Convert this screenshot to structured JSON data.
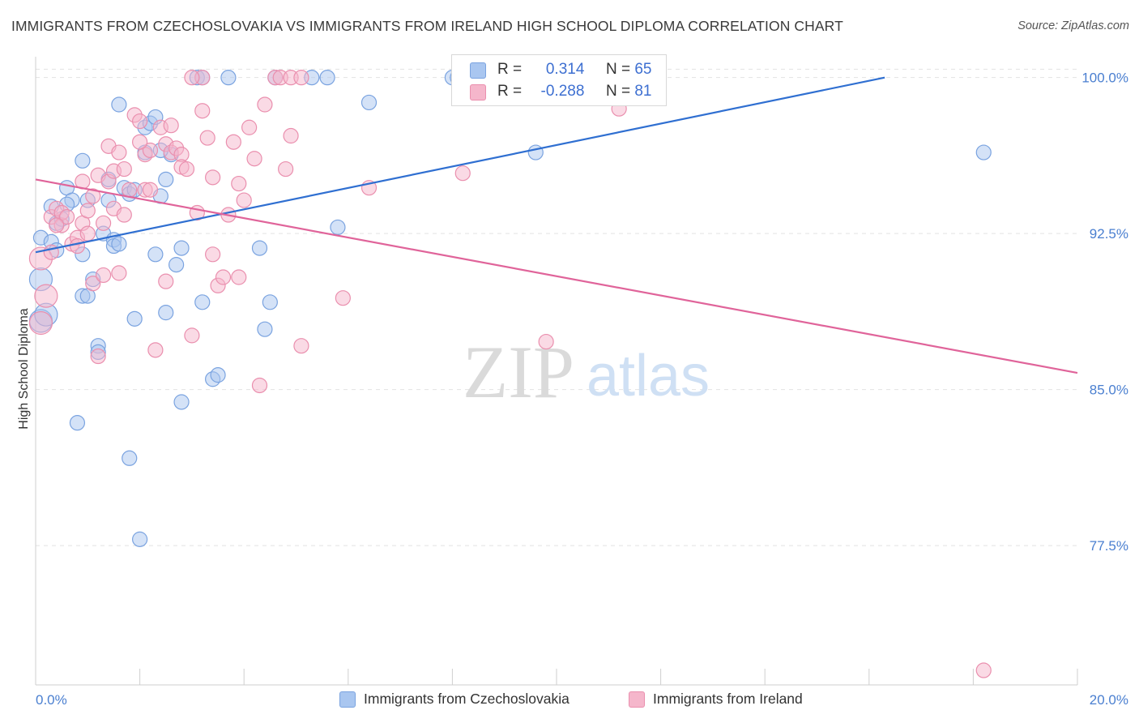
{
  "title": "IMMIGRANTS FROM CZECHOSLOVAKIA VS IMMIGRANTS FROM IRELAND HIGH SCHOOL DIPLOMA CORRELATION CHART",
  "source": "Source: ZipAtlas.com",
  "watermark": {
    "zip": "ZIP",
    "atlas": "atlas"
  },
  "legend": {
    "rows": [
      {
        "r_label": "R =",
        "r_value": "0.314",
        "n_label": "N =",
        "n_value": "65"
      },
      {
        "r_label": "R =",
        "r_value": "-0.288",
        "n_label": "N =",
        "n_value": "81"
      }
    ]
  },
  "bottom_legend": [
    "Immigrants from Czechoslovakia",
    "Immigrants from Ireland"
  ],
  "colors": {
    "blue_fill": "#a9c6f0",
    "blue_stroke": "#7aa3e0",
    "blue_line": "#2f6fd1",
    "pink_fill": "#f5b6cb",
    "pink_stroke": "#ea8fae",
    "pink_line": "#e0649a",
    "tick_text": "#4a7fd0",
    "grid": "#e2e2e2"
  },
  "chart_data": {
    "type": "scatter",
    "title": "IMMIGRANTS FROM CZECHOSLOVAKIA VS IMMIGRANTS FROM IRELAND HIGH SCHOOL DIPLOMA CORRELATION CHART",
    "xlabel": "",
    "ylabel": "High School Diploma",
    "xlim": [
      0,
      20
    ],
    "ylim": [
      70.8,
      101
    ],
    "x_tick_labels": [
      "0.0%",
      "20.0%"
    ],
    "y_ticks": [
      77.5,
      85.0,
      92.5,
      100.0
    ],
    "y_tick_labels": [
      "77.5%",
      "85.0%",
      "92.5%",
      "100.0%"
    ],
    "grid": true,
    "legend_position": "top-center",
    "series": [
      {
        "name": "Immigrants from Czechoslovakia",
        "R": 0.314,
        "N": 65,
        "trend": [
          [
            0.0,
            91.6
          ],
          [
            16.3,
            100.0
          ]
        ],
        "points": [
          [
            0.1,
            92.3
          ],
          [
            0.1,
            90.3
          ],
          [
            0.1,
            88.3
          ],
          [
            0.3,
            92.1
          ],
          [
            0.3,
            93.8
          ],
          [
            0.4,
            93.0
          ],
          [
            0.4,
            91.7
          ],
          [
            0.5,
            93.2
          ],
          [
            0.6,
            94.7
          ],
          [
            0.7,
            94.1
          ],
          [
            0.8,
            83.4
          ],
          [
            0.9,
            91.5
          ],
          [
            0.9,
            96.0
          ],
          [
            0.9,
            89.5
          ],
          [
            1.0,
            94.1
          ],
          [
            1.0,
            89.5
          ],
          [
            1.1,
            90.3
          ],
          [
            1.2,
            87.1
          ],
          [
            1.2,
            86.8
          ],
          [
            1.3,
            92.5
          ],
          [
            1.4,
            95.1
          ],
          [
            1.4,
            94.1
          ],
          [
            1.5,
            92.2
          ],
          [
            1.5,
            91.9
          ],
          [
            1.6,
            98.7
          ],
          [
            1.7,
            94.7
          ],
          [
            1.8,
            81.7
          ],
          [
            1.8,
            94.4
          ],
          [
            1.9,
            94.6
          ],
          [
            1.9,
            88.4
          ],
          [
            2.0,
            77.8
          ],
          [
            2.1,
            97.6
          ],
          [
            2.1,
            96.4
          ],
          [
            2.2,
            97.8
          ],
          [
            2.3,
            98.1
          ],
          [
            2.3,
            91.5
          ],
          [
            2.4,
            94.3
          ],
          [
            2.5,
            88.7
          ],
          [
            2.5,
            95.1
          ],
          [
            2.6,
            96.3
          ],
          [
            2.7,
            91.0
          ],
          [
            2.8,
            84.4
          ],
          [
            2.8,
            91.8
          ],
          [
            3.1,
            100.0
          ],
          [
            3.2,
            100.0
          ],
          [
            3.2,
            89.2
          ],
          [
            3.4,
            85.5
          ],
          [
            3.5,
            85.7
          ],
          [
            3.7,
            100.0
          ],
          [
            4.3,
            91.8
          ],
          [
            4.4,
            87.9
          ],
          [
            4.5,
            89.2
          ],
          [
            4.6,
            100.0
          ],
          [
            5.3,
            100.0
          ],
          [
            5.6,
            100.0
          ],
          [
            5.8,
            92.8
          ],
          [
            6.4,
            98.8
          ],
          [
            8.0,
            100.0
          ],
          [
            8.1,
            100.0
          ],
          [
            9.6,
            96.4
          ],
          [
            18.2,
            96.4
          ],
          [
            0.2,
            88.6
          ],
          [
            0.6,
            93.9
          ],
          [
            1.6,
            92.0
          ],
          [
            2.4,
            96.5
          ]
        ]
      },
      {
        "name": "Immigrants from Ireland",
        "R": -0.288,
        "N": 81,
        "trend": [
          [
            0.0,
            95.1
          ],
          [
            20.0,
            85.8
          ]
        ],
        "points": [
          [
            0.1,
            91.3
          ],
          [
            0.1,
            88.2
          ],
          [
            0.2,
            89.5
          ],
          [
            0.3,
            93.3
          ],
          [
            0.4,
            93.7
          ],
          [
            0.5,
            92.9
          ],
          [
            0.5,
            93.5
          ],
          [
            0.6,
            93.3
          ],
          [
            0.7,
            92.0
          ],
          [
            0.8,
            92.3
          ],
          [
            0.8,
            91.9
          ],
          [
            0.9,
            93.0
          ],
          [
            0.9,
            95.0
          ],
          [
            1.0,
            93.6
          ],
          [
            1.0,
            92.5
          ],
          [
            1.1,
            90.1
          ],
          [
            1.2,
            95.3
          ],
          [
            1.2,
            86.6
          ],
          [
            1.3,
            93.0
          ],
          [
            1.3,
            90.5
          ],
          [
            1.4,
            95.0
          ],
          [
            1.4,
            96.7
          ],
          [
            1.5,
            93.7
          ],
          [
            1.5,
            95.5
          ],
          [
            1.6,
            96.4
          ],
          [
            1.6,
            90.6
          ],
          [
            1.7,
            93.4
          ],
          [
            1.7,
            95.6
          ],
          [
            1.8,
            94.6
          ],
          [
            1.9,
            98.2
          ],
          [
            2.0,
            97.9
          ],
          [
            2.1,
            96.3
          ],
          [
            2.1,
            94.6
          ],
          [
            2.2,
            96.5
          ],
          [
            2.2,
            94.6
          ],
          [
            2.3,
            86.9
          ],
          [
            2.4,
            97.6
          ],
          [
            2.5,
            90.2
          ],
          [
            2.5,
            96.8
          ],
          [
            2.6,
            96.4
          ],
          [
            2.6,
            97.7
          ],
          [
            2.7,
            96.6
          ],
          [
            2.8,
            96.3
          ],
          [
            2.8,
            95.7
          ],
          [
            2.9,
            95.6
          ],
          [
            3.0,
            87.6
          ],
          [
            3.1,
            93.5
          ],
          [
            3.2,
            100.0
          ],
          [
            3.2,
            98.4
          ],
          [
            3.3,
            97.1
          ],
          [
            3.4,
            95.2
          ],
          [
            3.4,
            91.5
          ],
          [
            3.5,
            90.0
          ],
          [
            3.6,
            90.4
          ],
          [
            3.7,
            93.4
          ],
          [
            3.8,
            96.9
          ],
          [
            3.9,
            90.4
          ],
          [
            3.9,
            94.9
          ],
          [
            4.1,
            97.6
          ],
          [
            4.2,
            96.1
          ],
          [
            4.3,
            85.2
          ],
          [
            4.4,
            98.7
          ],
          [
            4.6,
            100.0
          ],
          [
            4.7,
            100.0
          ],
          [
            4.8,
            95.6
          ],
          [
            4.9,
            97.2
          ],
          [
            4.9,
            100.0
          ],
          [
            5.1,
            100.0
          ],
          [
            5.1,
            87.1
          ],
          [
            5.9,
            89.4
          ],
          [
            6.4,
            94.7
          ],
          [
            8.2,
            95.4
          ],
          [
            9.8,
            87.3
          ],
          [
            11.2,
            98.5
          ],
          [
            18.2,
            71.5
          ],
          [
            0.3,
            91.6
          ],
          [
            0.4,
            92.9
          ],
          [
            1.1,
            94.3
          ],
          [
            2.0,
            96.9
          ],
          [
            3.0,
            100.0
          ],
          [
            4.0,
            94.1
          ]
        ]
      }
    ]
  }
}
